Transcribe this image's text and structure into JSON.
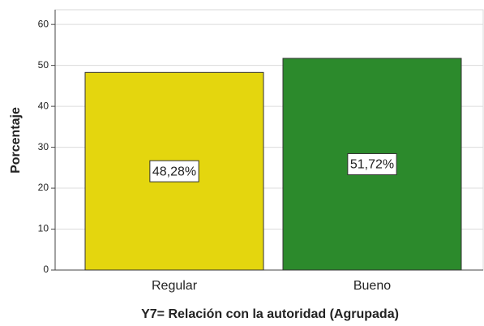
{
  "chart_data": {
    "type": "bar",
    "categories": [
      "Regular",
      "Bueno"
    ],
    "values": [
      48.28,
      51.72
    ],
    "value_labels": [
      "48,28%",
      "51,72%"
    ],
    "colors": [
      "#e4d60e",
      "#2c8a2c"
    ],
    "xlabel": "Y7= Relación con la autoridad (Agrupada)",
    "ylabel": "Porcentaje",
    "ylim": [
      0,
      63.6
    ],
    "yticks": [
      0,
      10,
      20,
      30,
      40,
      50,
      60
    ],
    "grid": true
  }
}
